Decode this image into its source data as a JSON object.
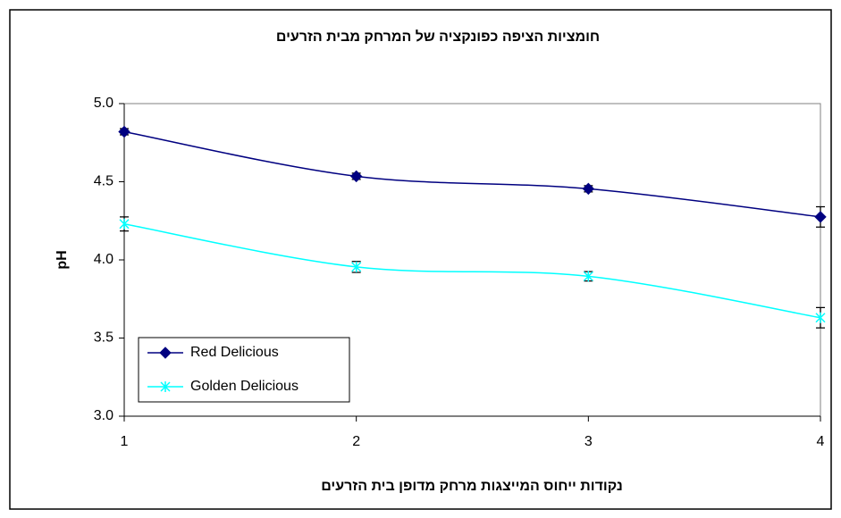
{
  "chart_data": {
    "type": "line",
    "title": "חומציות הציפה כפונקציה של המרחק מבית הזרעים",
    "x_label": "נקודות ייחוס המייצגות מרחק מדופן בית הזרעים",
    "y_label": "pH",
    "x": [
      1,
      2,
      3,
      4
    ],
    "xlim": [
      1,
      4
    ],
    "xticks": [
      1,
      2,
      3,
      4
    ],
    "ylim": [
      3,
      5
    ],
    "yticks": [
      {
        "value": 3,
        "label": "3.0"
      },
      3.5,
      {
        "value": 4,
        "label": "4.0"
      },
      4.5,
      {
        "value": 5,
        "label": "5.0"
      }
    ],
    "series": [
      {
        "name": "Red Delicious",
        "color": "#000080",
        "marker": "diamond",
        "values": [
          4.82,
          4.535,
          4.455,
          4.275
        ],
        "errors": [
          0.02,
          0.02,
          0.02,
          0.065
        ]
      },
      {
        "name": "Golden Delicious",
        "color": "#00ffff",
        "marker": "x",
        "values": [
          4.23,
          3.955,
          3.895,
          3.63
        ],
        "errors": [
          0.045,
          0.035,
          0.03,
          0.065
        ]
      }
    ],
    "legend": "lower left",
    "smooth": true
  }
}
